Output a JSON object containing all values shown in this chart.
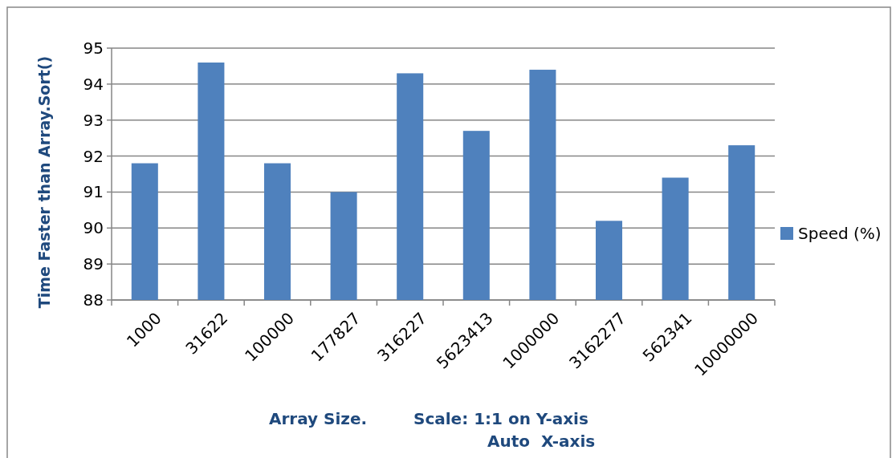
{
  "chart_data": {
    "type": "bar",
    "categories": [
      "1000",
      "31622",
      "100000",
      "177827",
      "316227",
      "5623413",
      "1000000",
      "3162277",
      "562341",
      "10000000"
    ],
    "series": [
      {
        "name": "Speed (%)",
        "color": "#4f81bd",
        "values": [
          91.8,
          94.6,
          91.8,
          91.0,
          94.3,
          92.7,
          94.4,
          90.2,
          91.4,
          92.3
        ]
      }
    ],
    "ylim": [
      88,
      95
    ],
    "yticks": [
      88,
      89,
      90,
      91,
      92,
      93,
      94,
      95
    ],
    "grid": "y",
    "legend": "right",
    "ylabel": "Time Faster than Array.Sort()",
    "xlabel": "Array Size.",
    "annotations": [
      "Scale: 1:1 on Y-axis\nAuto  X-axis"
    ]
  }
}
